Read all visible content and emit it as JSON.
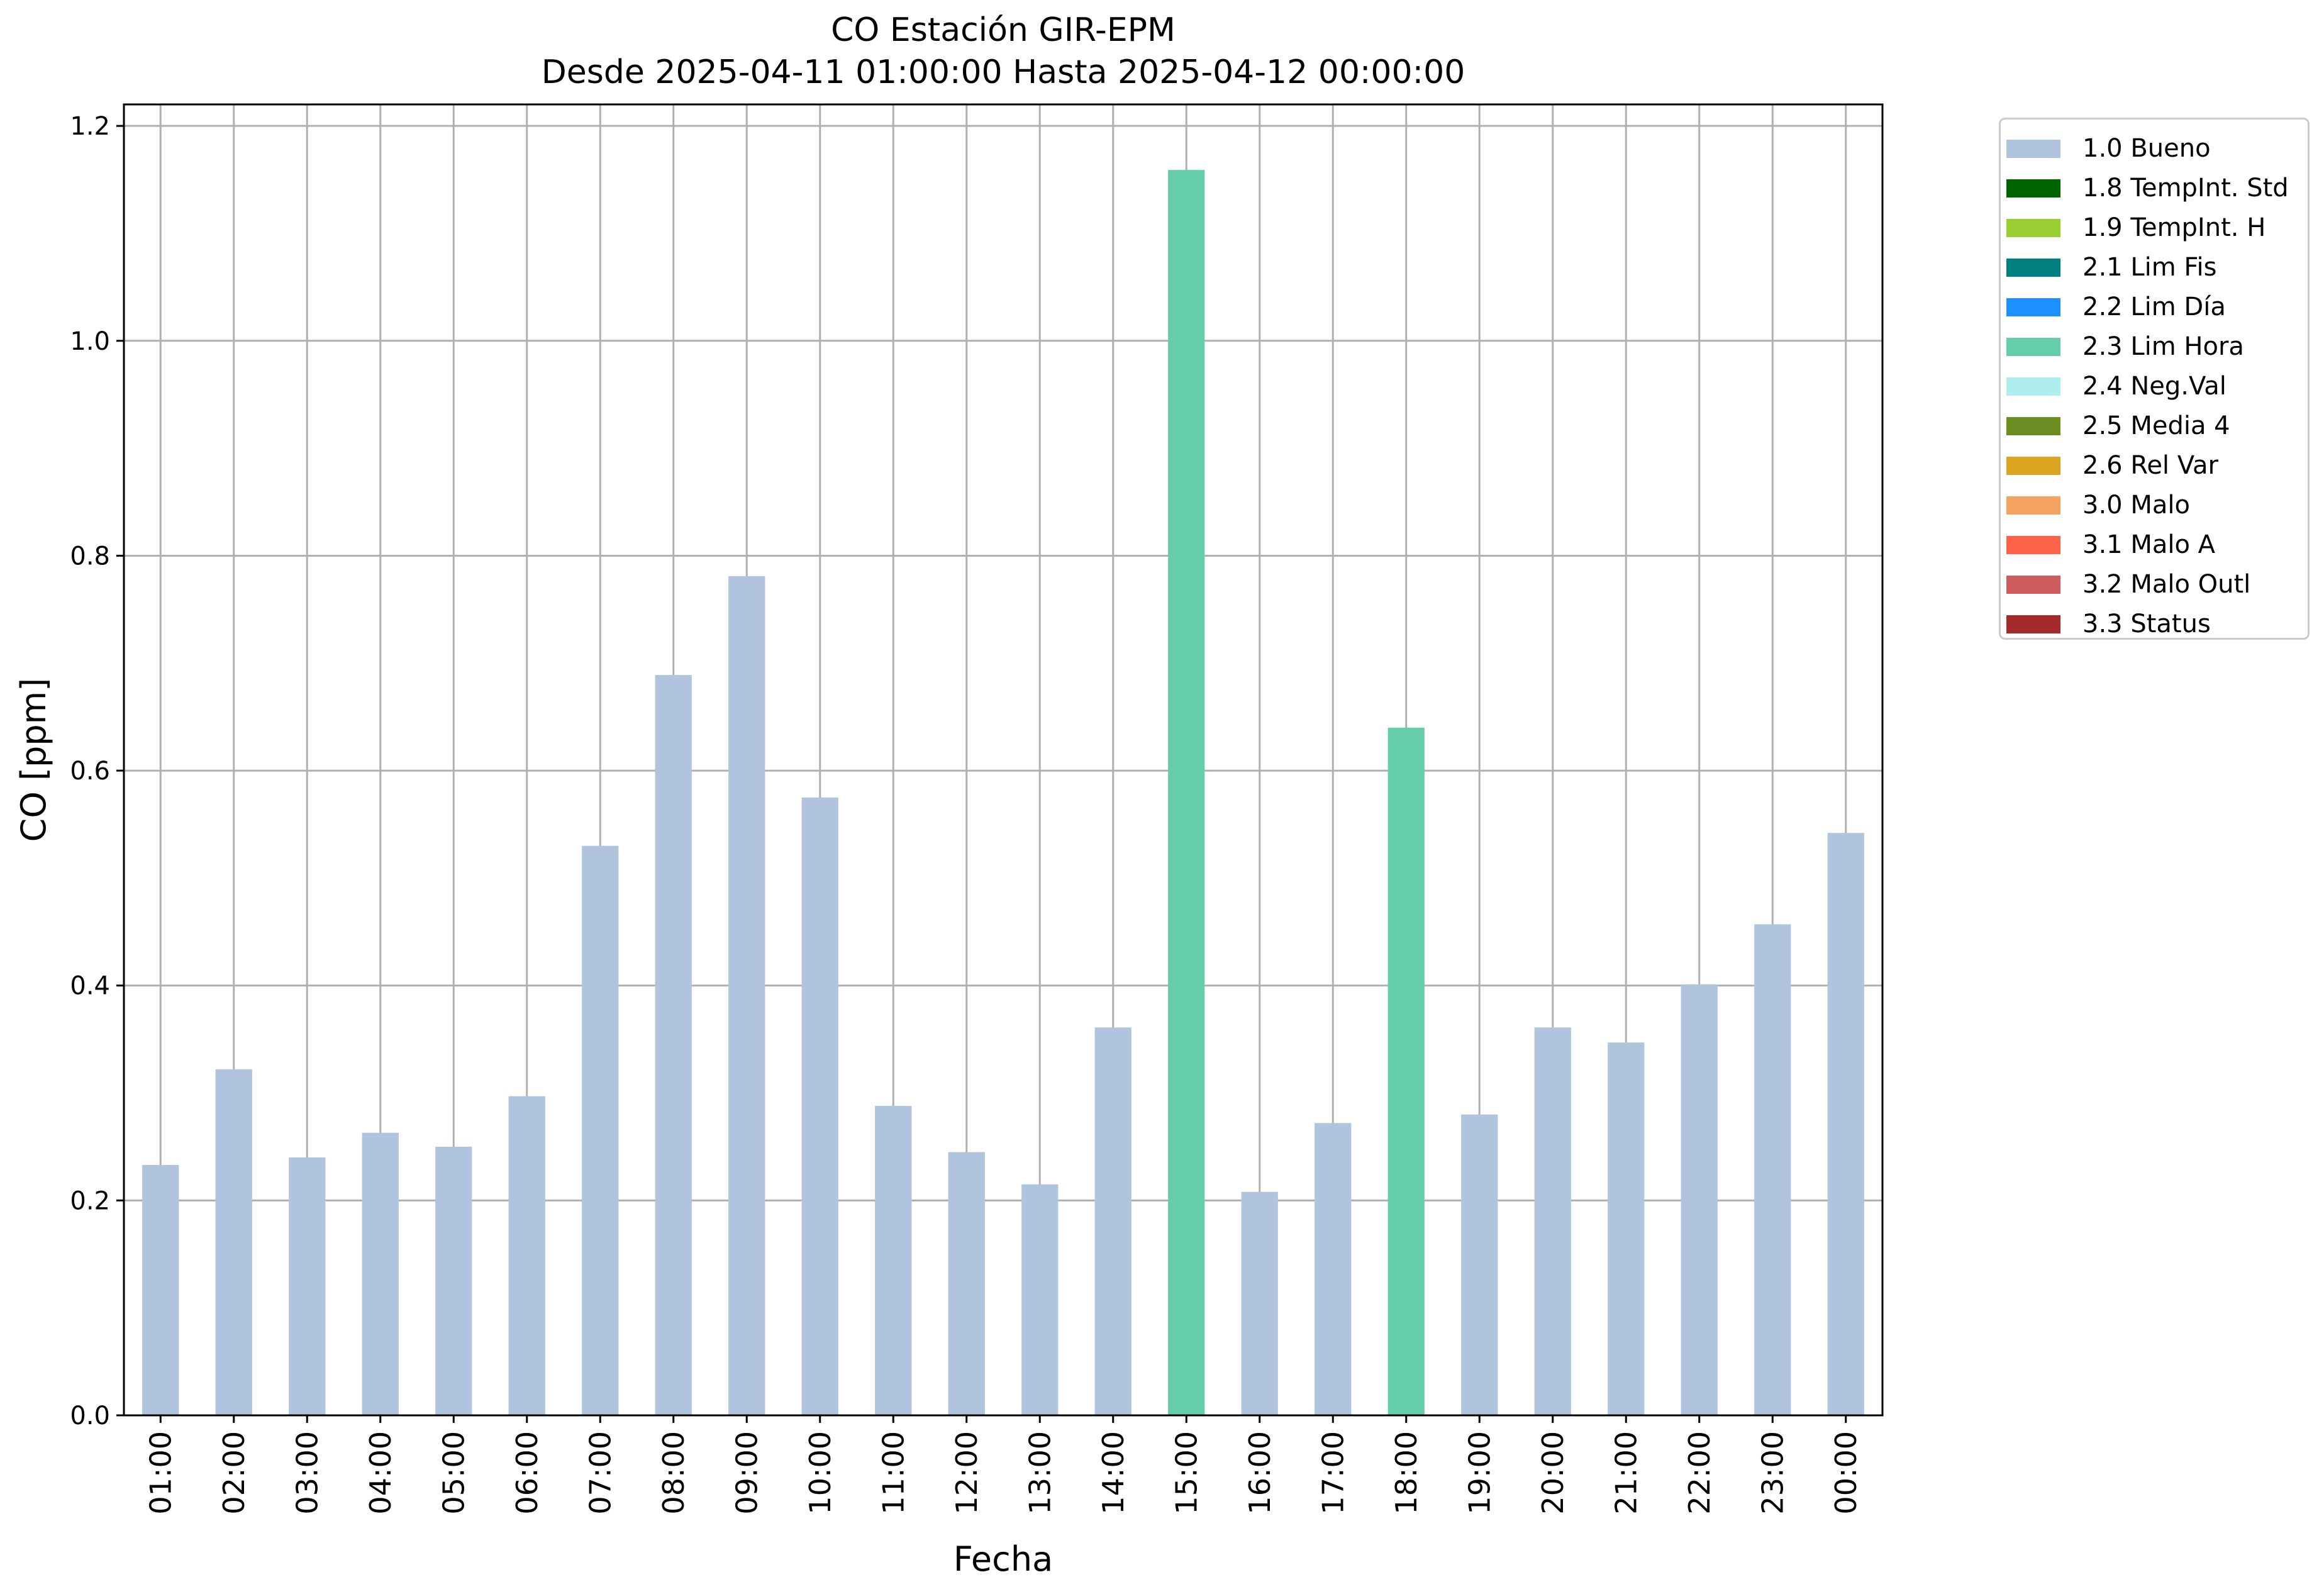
{
  "chart_data": {
    "type": "bar",
    "title": "CO Estación GIR-EPM",
    "subtitle": "Desde 2025-04-11 01:00:00 Hasta 2025-04-12 00:00:00",
    "xlabel": "Fecha",
    "ylabel": "CO [ppm]",
    "ylim": [
      0,
      1.22
    ],
    "yticks": [
      "0.0",
      "0.2",
      "0.4",
      "0.6",
      "0.8",
      "1.0",
      "1.2"
    ],
    "grid": true,
    "legend_position": "outside-right",
    "categories": [
      "01:00",
      "02:00",
      "03:00",
      "04:00",
      "05:00",
      "06:00",
      "07:00",
      "08:00",
      "09:00",
      "10:00",
      "11:00",
      "12:00",
      "13:00",
      "14:00",
      "15:00",
      "16:00",
      "17:00",
      "18:00",
      "19:00",
      "20:00",
      "21:00",
      "22:00",
      "23:00",
      "00:00"
    ],
    "values": [
      0.233,
      0.322,
      0.24,
      0.263,
      0.25,
      0.297,
      0.53,
      0.689,
      0.781,
      0.575,
      0.288,
      0.245,
      0.215,
      0.361,
      1.159,
      0.208,
      0.272,
      0.64,
      0.28,
      0.361,
      0.347,
      0.401,
      0.457,
      0.542
    ],
    "flags": [
      "1.0 Bueno",
      "1.0 Bueno",
      "1.0 Bueno",
      "1.0 Bueno",
      "1.0 Bueno",
      "1.0 Bueno",
      "1.0 Bueno",
      "1.0 Bueno",
      "1.0 Bueno",
      "1.0 Bueno",
      "1.0 Bueno",
      "1.0 Bueno",
      "1.0 Bueno",
      "1.0 Bueno",
      "2.3 Lim Hora",
      "1.0 Bueno",
      "1.0 Bueno",
      "2.3 Lim Hora",
      "1.0 Bueno",
      "1.0 Bueno",
      "1.0 Bueno",
      "1.0 Bueno",
      "1.0 Bueno",
      "1.0 Bueno"
    ],
    "legend": [
      {
        "label": "1.0 Bueno",
        "color": "#b0c4de"
      },
      {
        "label": "1.8 TempInt. Std",
        "color": "#006400"
      },
      {
        "label": "1.9 TempInt. H",
        "color": "#9acd32"
      },
      {
        "label": "2.1 Lim Fis",
        "color": "#008080"
      },
      {
        "label": "2.2 Lim Día",
        "color": "#1e90ff"
      },
      {
        "label": "2.3 Lim Hora",
        "color": "#66cdaa"
      },
      {
        "label": "2.4 Neg.Val",
        "color": "#afeeee"
      },
      {
        "label": "2.5 Media 4",
        "color": "#6b8e23"
      },
      {
        "label": "2.6 Rel Var",
        "color": "#daa520"
      },
      {
        "label": "3.0 Malo",
        "color": "#f4a460"
      },
      {
        "label": "3.1 Malo A",
        "color": "#ff6347"
      },
      {
        "label": "3.2 Malo Outl",
        "color": "#cd5c5c"
      },
      {
        "label": "3.3 Status",
        "color": "#a52a2a"
      }
    ]
  }
}
